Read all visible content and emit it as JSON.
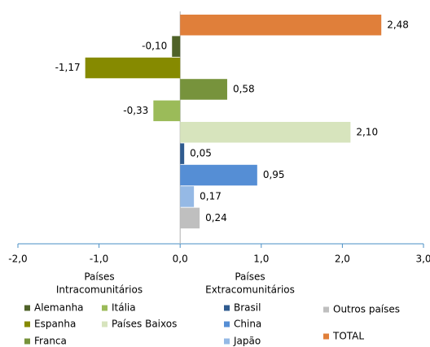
{
  "chart_data": {
    "type": "barh",
    "categories": [
      "TOTAL",
      "Alemanha",
      "Espanha",
      "Franca",
      "Itália",
      "Países Baixos",
      "Brasil",
      "China",
      "Japão",
      "Outros países"
    ],
    "values": [
      2.48,
      -0.1,
      -1.17,
      0.58,
      -0.33,
      2.1,
      0.05,
      0.95,
      0.17,
      0.24
    ],
    "value_labels": [
      "2,48",
      "-0,10",
      "-1,17",
      "0,58",
      "-0,33",
      "2,10",
      "0,05",
      "0,95",
      "0,17",
      "0,24"
    ],
    "colors": [
      "#e07f3a",
      "#4f6228",
      "#868a00",
      "#77933c",
      "#9bbb59",
      "#d7e4bd",
      "#2f5b8f",
      "#558ed5",
      "#95b9e5",
      "#bfbfbf"
    ],
    "xlim": [
      -2,
      3
    ],
    "xticks": [
      {
        "value": -2,
        "label": "-2,0"
      },
      {
        "value": -1,
        "label": "-1,0"
      },
      {
        "value": 0,
        "label": "0,0"
      },
      {
        "value": 1,
        "label": "1,0"
      },
      {
        "value": 2,
        "label": "2,0"
      },
      {
        "value": 3,
        "label": "3,0"
      }
    ],
    "legend_groups": [
      [
        "Países",
        "Intracomunitários"
      ],
      [
        "Países",
        "Extracomunitários"
      ]
    ]
  }
}
